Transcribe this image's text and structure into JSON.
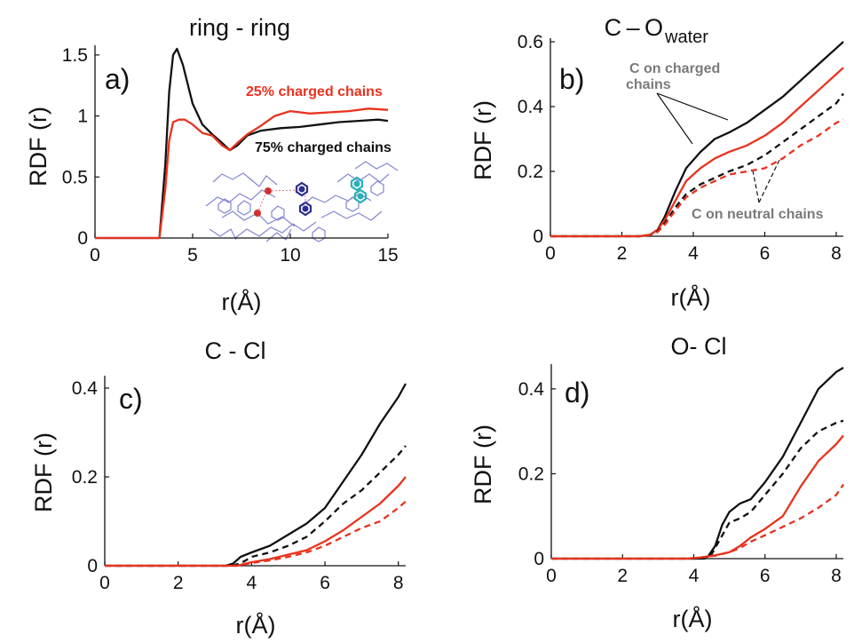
{
  "colors": {
    "black": "#111111",
    "red": "#e8321e",
    "grey": "#7a7a7a",
    "inset_blue": "#6f73c8",
    "inset_cyan": "#27b0b8",
    "inset_pink": "#e06080"
  },
  "chart_data": [
    {
      "type": "line",
      "panel_label": "a)",
      "title": "ring - ring",
      "title_sub": "",
      "xlabel": "r(Å)",
      "ylabel": "RDF (r)",
      "xlim": [
        0,
        15
      ],
      "ylim": [
        0,
        1.55
      ],
      "xticks": [
        0,
        5,
        10,
        15
      ],
      "yticks": [
        0,
        0.5,
        1,
        1.5
      ],
      "xtick_labels": [
        "0",
        "5",
        "10",
        "15"
      ],
      "ytick_labels": [
        "0",
        "0.5",
        "1",
        "1.5"
      ],
      "grid": false,
      "series": [
        {
          "color": "#111111",
          "dash": false,
          "x": [
            0,
            3.3,
            3.6,
            3.8,
            4.0,
            4.2,
            4.5,
            5.0,
            5.5,
            6.0,
            6.5,
            6.9,
            7.3,
            7.8,
            8.5,
            9.5,
            10.5,
            11.5,
            12.5,
            13.5,
            14.5,
            15
          ],
          "y": [
            0,
            0,
            0.6,
            1.2,
            1.5,
            1.55,
            1.42,
            1.1,
            0.93,
            0.85,
            0.78,
            0.72,
            0.76,
            0.84,
            0.88,
            0.9,
            0.91,
            0.93,
            0.95,
            0.96,
            0.97,
            0.96
          ]
        },
        {
          "color": "#e8321e",
          "dash": false,
          "x": [
            0,
            3.3,
            3.6,
            3.8,
            4.0,
            4.3,
            4.6,
            5.0,
            5.5,
            6.0,
            6.5,
            6.9,
            7.3,
            7.8,
            8.5,
            9.2,
            10.0,
            11,
            12,
            13,
            14,
            15
          ],
          "y": [
            0,
            0,
            0.4,
            0.8,
            0.95,
            0.97,
            0.97,
            0.93,
            0.86,
            0.84,
            0.76,
            0.72,
            0.78,
            0.85,
            0.92,
            1.0,
            1.04,
            1.02,
            1.03,
            1.04,
            1.06,
            1.05
          ]
        }
      ],
      "annotations": [
        {
          "text": "25% charged chains",
          "style": "red"
        },
        {
          "text": "75% charged chains",
          "style": "black"
        }
      ]
    },
    {
      "type": "line",
      "panel_label": "b)",
      "title": "C – O",
      "title_sub": "water",
      "xlabel": "r(Å)",
      "ylabel": "RDF (r)",
      "xlim": [
        0,
        8.2
      ],
      "ylim": [
        0,
        0.6
      ],
      "xticks": [
        0,
        2,
        4,
        6,
        8
      ],
      "yticks": [
        0,
        0.2,
        0.4,
        0.6
      ],
      "xtick_labels": [
        "0",
        "2",
        "4",
        "6",
        "8"
      ],
      "ytick_labels": [
        "0",
        "0.2",
        "0.4",
        "0.6"
      ],
      "grid": false,
      "series": [
        {
          "color": "#111111",
          "dash": false,
          "x": [
            0,
            2.5,
            2.8,
            3.0,
            3.2,
            3.5,
            3.8,
            4.2,
            4.6,
            5.0,
            5.5,
            6.0,
            6.5,
            7.0,
            7.5,
            8.0,
            8.2
          ],
          "y": [
            0,
            0,
            0.005,
            0.02,
            0.06,
            0.14,
            0.21,
            0.26,
            0.3,
            0.32,
            0.35,
            0.39,
            0.43,
            0.48,
            0.53,
            0.58,
            0.6
          ]
        },
        {
          "color": "#e8321e",
          "dash": false,
          "x": [
            0,
            2.5,
            2.8,
            3.0,
            3.2,
            3.5,
            3.8,
            4.2,
            4.6,
            5.0,
            5.5,
            6.0,
            6.5,
            7.0,
            7.5,
            8.0,
            8.2
          ],
          "y": [
            0,
            0,
            0.005,
            0.02,
            0.05,
            0.11,
            0.17,
            0.21,
            0.24,
            0.26,
            0.28,
            0.31,
            0.35,
            0.4,
            0.45,
            0.5,
            0.52
          ]
        },
        {
          "color": "#111111",
          "dash": true,
          "x": [
            0,
            2.5,
            2.8,
            3.0,
            3.2,
            3.5,
            3.8,
            4.2,
            4.6,
            5.0,
            5.5,
            6.0,
            6.5,
            7.0,
            7.5,
            8.0,
            8.2
          ],
          "y": [
            0,
            0,
            0.004,
            0.015,
            0.04,
            0.09,
            0.13,
            0.16,
            0.18,
            0.2,
            0.22,
            0.25,
            0.29,
            0.33,
            0.37,
            0.41,
            0.44
          ]
        },
        {
          "color": "#e8321e",
          "dash": true,
          "x": [
            0,
            2.5,
            2.8,
            3.0,
            3.2,
            3.5,
            3.8,
            4.2,
            4.6,
            5.0,
            5.5,
            6.0,
            6.5,
            7.0,
            7.5,
            8.0,
            8.2
          ],
          "y": [
            0,
            0,
            0.004,
            0.013,
            0.035,
            0.08,
            0.12,
            0.15,
            0.17,
            0.19,
            0.2,
            0.21,
            0.24,
            0.28,
            0.31,
            0.35,
            0.36
          ]
        }
      ],
      "annotations": [
        {
          "text": "C on charged",
          "style": "grey"
        },
        {
          "text": "chains",
          "style": "grey"
        },
        {
          "text": "C on neutral chains",
          "style": "grey"
        }
      ]
    },
    {
      "type": "line",
      "panel_label": "c)",
      "title": "C - Cl",
      "title_sub": "",
      "xlabel": "r(Å)",
      "ylabel": "RDF (r)",
      "xlim": [
        0,
        8.2
      ],
      "ylim": [
        0,
        0.42
      ],
      "xticks": [
        0,
        2,
        4,
        6,
        8
      ],
      "yticks": [
        0,
        0.2,
        0.4
      ],
      "xtick_labels": [
        "0",
        "2",
        "4",
        "6",
        "8"
      ],
      "ytick_labels": [
        "0",
        "0.2",
        "0.4"
      ],
      "grid": false,
      "series": [
        {
          "color": "#111111",
          "dash": false,
          "x": [
            0,
            3.3,
            3.5,
            3.7,
            4.0,
            4.5,
            5.0,
            5.5,
            6.0,
            6.5,
            7.0,
            7.5,
            8.0,
            8.2
          ],
          "y": [
            0,
            0,
            0.005,
            0.02,
            0.03,
            0.045,
            0.07,
            0.095,
            0.13,
            0.19,
            0.25,
            0.32,
            0.38,
            0.41
          ]
        },
        {
          "color": "#111111",
          "dash": true,
          "x": [
            0,
            3.5,
            3.8,
            4.0,
            4.5,
            5.0,
            5.5,
            6.0,
            6.5,
            7.0,
            7.5,
            8.0,
            8.2
          ],
          "y": [
            0,
            0,
            0.01,
            0.02,
            0.03,
            0.045,
            0.065,
            0.1,
            0.14,
            0.17,
            0.21,
            0.25,
            0.27
          ]
        },
        {
          "color": "#e8321e",
          "dash": false,
          "x": [
            0,
            3.6,
            3.8,
            4.0,
            4.5,
            5.0,
            5.5,
            6.0,
            6.5,
            7.0,
            7.5,
            8.0,
            8.2
          ],
          "y": [
            0,
            0,
            0.004,
            0.008,
            0.015,
            0.025,
            0.035,
            0.055,
            0.08,
            0.11,
            0.14,
            0.18,
            0.2
          ]
        },
        {
          "color": "#e8321e",
          "dash": true,
          "x": [
            0,
            3.6,
            3.8,
            4.0,
            4.5,
            5.0,
            5.5,
            6.0,
            6.5,
            7.0,
            7.5,
            8.0,
            8.2
          ],
          "y": [
            0,
            0,
            0.003,
            0.006,
            0.012,
            0.02,
            0.03,
            0.045,
            0.065,
            0.085,
            0.1,
            0.13,
            0.145
          ]
        }
      ],
      "annotations": []
    },
    {
      "type": "line",
      "panel_label": "d)",
      "title": "O- Cl",
      "title_sub": "",
      "xlabel": "r(Å)",
      "ylabel": "RDF (r)",
      "xlim": [
        0,
        8.2
      ],
      "ylim": [
        0,
        0.45
      ],
      "xticks": [
        0,
        2,
        4,
        6,
        8
      ],
      "yticks": [
        0,
        0.2,
        0.4
      ],
      "xtick_labels": [
        "0",
        "2",
        "4",
        "6",
        "8"
      ],
      "ytick_labels": [
        "0",
        "0.2",
        "0.4"
      ],
      "grid": false,
      "series": [
        {
          "color": "#111111",
          "dash": false,
          "x": [
            0,
            4.2,
            4.4,
            4.6,
            4.8,
            5.0,
            5.3,
            5.6,
            6.0,
            6.5,
            7.0,
            7.5,
            8.0,
            8.2
          ],
          "y": [
            0,
            0,
            0.005,
            0.03,
            0.08,
            0.11,
            0.13,
            0.14,
            0.18,
            0.24,
            0.32,
            0.4,
            0.44,
            0.45
          ]
        },
        {
          "color": "#111111",
          "dash": true,
          "x": [
            0,
            4.3,
            4.5,
            4.7,
            5.0,
            5.3,
            5.6,
            6.0,
            6.5,
            7.0,
            7.5,
            8.0,
            8.2
          ],
          "y": [
            0,
            0,
            0.01,
            0.04,
            0.085,
            0.095,
            0.11,
            0.15,
            0.2,
            0.26,
            0.3,
            0.32,
            0.325
          ]
        },
        {
          "color": "#e8321e",
          "dash": false,
          "x": [
            0,
            3.8,
            4.2,
            4.6,
            5.0,
            5.3,
            5.6,
            6.0,
            6.5,
            7.0,
            7.5,
            8.0,
            8.2
          ],
          "y": [
            0,
            0,
            0.003,
            0.008,
            0.015,
            0.03,
            0.05,
            0.07,
            0.1,
            0.17,
            0.23,
            0.27,
            0.29
          ]
        },
        {
          "color": "#e8321e",
          "dash": true,
          "x": [
            0,
            3.8,
            4.2,
            4.6,
            5.0,
            5.3,
            5.6,
            6.0,
            6.5,
            7.0,
            7.5,
            8.0,
            8.2
          ],
          "y": [
            0,
            0,
            0.003,
            0.007,
            0.015,
            0.025,
            0.04,
            0.055,
            0.075,
            0.095,
            0.12,
            0.15,
            0.175
          ]
        }
      ],
      "annotations": []
    }
  ]
}
